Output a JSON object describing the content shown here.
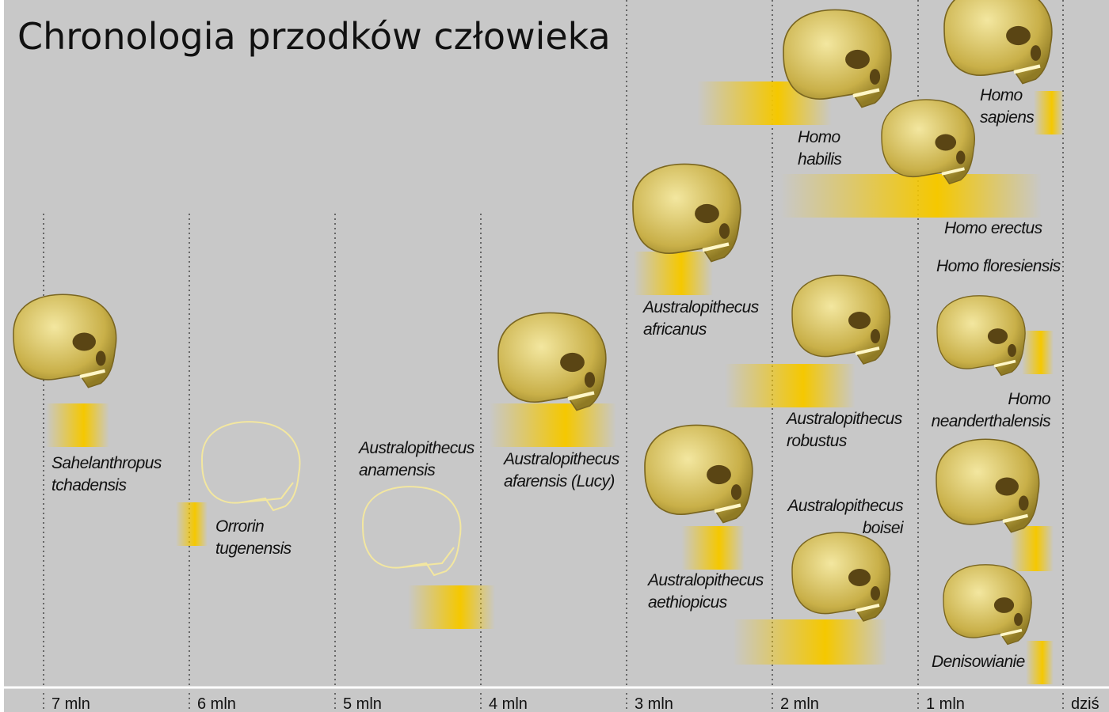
{
  "title": "Chronologia przodków człowieka",
  "axis_labels": [
    "7 mln",
    "6 mln",
    "5 mln",
    "4 mln",
    "3 mln",
    "2 mln",
    "1 mln",
    "dziś"
  ],
  "species": [
    {
      "lines": [
        "Sahelanthropus",
        "tchadensis"
      ]
    },
    {
      "lines": [
        "Orrorin",
        "tugenensis"
      ]
    },
    {
      "lines": [
        "Australopithecus",
        "anamensis"
      ]
    },
    {
      "lines": [
        "Australopithecus",
        "afarensis (Lucy)"
      ]
    },
    {
      "lines": [
        "Australopithecus",
        "africanus"
      ]
    },
    {
      "lines": [
        "Australopithecus",
        "aethiopicus"
      ]
    },
    {
      "lines": [
        "Homo",
        "habilis"
      ]
    },
    {
      "lines": [
        "Australopithecus",
        "robustus"
      ]
    },
    {
      "lines": [
        "Australopithecus",
        "boisei"
      ]
    },
    {
      "lines": [
        "Homo",
        "sapiens"
      ]
    },
    {
      "lines": [
        "Homo  erectus"
      ]
    },
    {
      "lines": [
        "Homo floresiensis"
      ]
    },
    {
      "lines": [
        "Homo",
        "neanderthalensis"
      ]
    },
    {
      "lines": [
        "Denisowianie"
      ]
    }
  ]
}
